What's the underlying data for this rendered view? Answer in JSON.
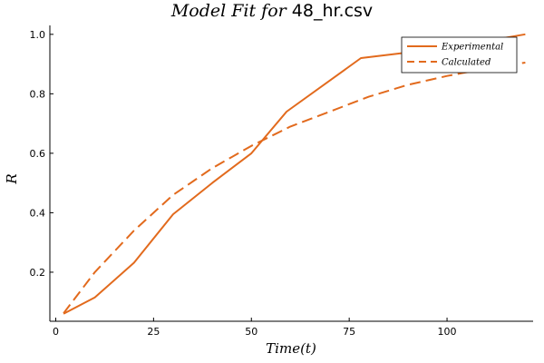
{
  "chart_data": {
    "type": "line",
    "title": {
      "prefix": "Model Fit for ",
      "filename": "48_hr.csv"
    },
    "xlabel": "Time(t)",
    "ylabel": "R",
    "xlim": [
      -1.5,
      122
    ],
    "ylim": [
      0.035,
      1.03
    ],
    "xticks": [
      0,
      25,
      50,
      75,
      100
    ],
    "yticks": [
      0.2,
      0.4,
      0.6,
      0.8,
      1.0
    ],
    "xtick_labels": [
      "0",
      "25",
      "50",
      "75",
      "100"
    ],
    "ytick_labels": [
      "0.2",
      "0.4",
      "0.6",
      "0.8",
      "1.0"
    ],
    "grid": false,
    "legend_position": "top-right",
    "color": "#e26a1d",
    "series": [
      {
        "name": "Experimental",
        "style": "solid",
        "x": [
          2,
          10,
          20,
          30,
          40,
          50,
          59,
          78,
          100,
          120
        ],
        "y": [
          0.06,
          0.115,
          0.232,
          0.395,
          0.5,
          0.6,
          0.74,
          0.92,
          0.955,
          1.0
        ]
      },
      {
        "name": "Calculated",
        "style": "dashed",
        "x": [
          2,
          10,
          20,
          30,
          40,
          50,
          60,
          70,
          80,
          90,
          100,
          110,
          120
        ],
        "y": [
          0.062,
          0.2,
          0.34,
          0.46,
          0.55,
          0.625,
          0.69,
          0.74,
          0.79,
          0.83,
          0.86,
          0.885,
          0.905
        ]
      }
    ]
  }
}
